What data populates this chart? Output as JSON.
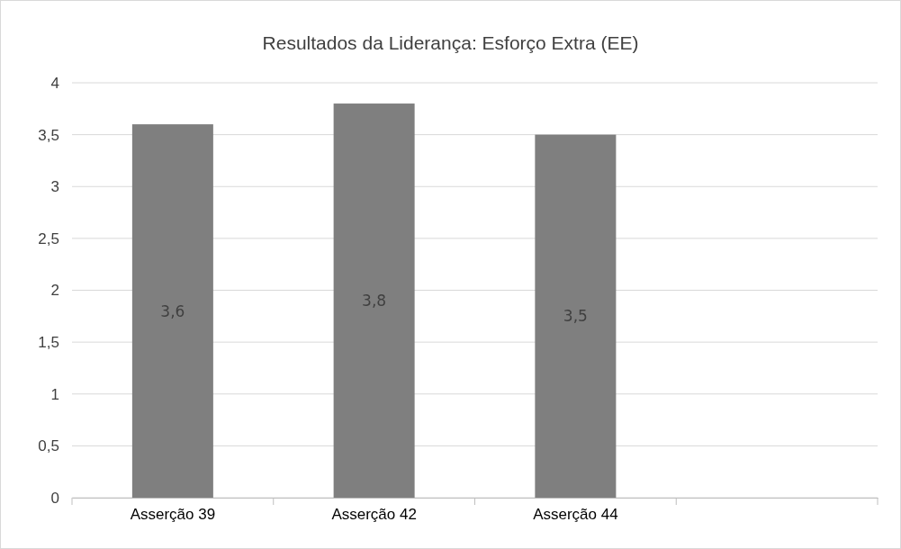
{
  "chart_data": {
    "type": "bar",
    "title": "Resultados da Liderança: Esforço Extra (EE)",
    "categories": [
      "Asserção 39",
      "Asserção 42",
      "Asserção 44",
      null
    ],
    "values": [
      3.6,
      3.8,
      3.5,
      null
    ],
    "value_labels": [
      "3,6",
      "3,8",
      "3,5",
      null
    ],
    "color": "#7f7f7f",
    "ylim": [
      0,
      4
    ],
    "yticks": [
      0,
      {
        "value": 0.5,
        "label": "0,5"
      },
      1,
      {
        "value": 1.5,
        "label": "1,5"
      },
      2,
      {
        "value": 2.5,
        "label": "2,5"
      },
      3,
      {
        "value": 3.5,
        "label": "3,5"
      },
      4
    ],
    "grid": "y"
  }
}
